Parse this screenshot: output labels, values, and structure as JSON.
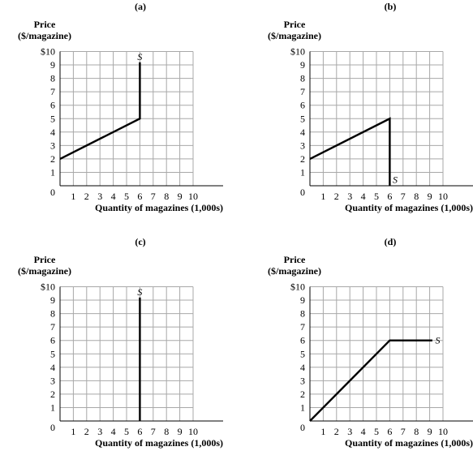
{
  "chart_data": [
    {
      "type": "line",
      "panel_label": "(a)",
      "y_title_line1": "Price",
      "y_title_line2": "($/magazine)",
      "xlabel": "Quantity of magazines (1,000s)",
      "x_ticks": [
        "0",
        "1",
        "2",
        "3",
        "4",
        "5",
        "6",
        "7",
        "8",
        "9",
        "10"
      ],
      "y_ticks": [
        "1",
        "2",
        "3",
        "4",
        "5",
        "6",
        "7",
        "8",
        "9",
        "$10"
      ],
      "xlim": [
        0,
        10
      ],
      "ylim": [
        0,
        10
      ],
      "grid": true,
      "series": [
        {
          "name": "S",
          "points": [
            [
              0,
              2
            ],
            [
              6,
              5
            ],
            [
              6,
              9.2
            ]
          ],
          "label_at": [
            6,
            9.6
          ]
        }
      ]
    },
    {
      "type": "line",
      "panel_label": "(b)",
      "y_title_line1": "Price",
      "y_title_line2": "($/magazine)",
      "xlabel": "Quantity of magazines (1,000s)",
      "x_ticks": [
        "0",
        "1",
        "2",
        "3",
        "4",
        "5",
        "6",
        "7",
        "8",
        "9",
        "10"
      ],
      "y_ticks": [
        "1",
        "2",
        "3",
        "4",
        "5",
        "6",
        "7",
        "8",
        "9",
        "$10"
      ],
      "xlim": [
        0,
        10
      ],
      "ylim": [
        0,
        10
      ],
      "grid": true,
      "series": [
        {
          "name": "S",
          "points": [
            [
              0,
              2
            ],
            [
              6,
              5
            ],
            [
              6,
              0
            ]
          ],
          "label_at": [
            6.4,
            0.45
          ]
        }
      ]
    },
    {
      "type": "line",
      "panel_label": "(c)",
      "y_title_line1": "Price",
      "y_title_line2": "($/magazine)",
      "xlabel": "Quantity of magazines (1,000s)",
      "x_ticks": [
        "0",
        "1",
        "2",
        "3",
        "4",
        "5",
        "6",
        "7",
        "8",
        "9",
        "10"
      ],
      "y_ticks": [
        "1",
        "2",
        "3",
        "4",
        "5",
        "6",
        "7",
        "8",
        "9",
        "$10"
      ],
      "xlim": [
        0,
        10
      ],
      "ylim": [
        0,
        10
      ],
      "grid": true,
      "series": [
        {
          "name": "S",
          "points": [
            [
              6,
              0
            ],
            [
              6,
              9.2
            ]
          ],
          "label_at": [
            6,
            9.6
          ]
        }
      ]
    },
    {
      "type": "line",
      "panel_label": "(d)",
      "y_title_line1": "Price",
      "y_title_line2": "($/magazine)",
      "xlabel": "Quantity of magazines (1,000s)",
      "x_ticks": [
        "0",
        "1",
        "2",
        "3",
        "4",
        "5",
        "6",
        "7",
        "8",
        "9",
        "10"
      ],
      "y_ticks": [
        "1",
        "2",
        "3",
        "4",
        "5",
        "6",
        "7",
        "8",
        "9",
        "$10"
      ],
      "xlim": [
        0,
        10
      ],
      "ylim": [
        0,
        10
      ],
      "grid": true,
      "series": [
        {
          "name": "S",
          "points": [
            [
              0,
              0
            ],
            [
              6,
              6
            ],
            [
              9.2,
              6
            ]
          ],
          "label_at": [
            9.6,
            6
          ]
        }
      ]
    }
  ]
}
